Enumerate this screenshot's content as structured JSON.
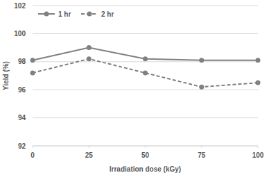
{
  "chart_data": {
    "type": "line",
    "x_label": "Irradiation dose (kGy)",
    "y_label": "Yield (%)",
    "x": [
      0,
      25,
      50,
      75,
      100
    ],
    "series": [
      {
        "name": "1 hr",
        "color": "#808080",
        "marker": "circle",
        "line_style": "solid",
        "values": [
          98.1,
          99.0,
          98.2,
          98.1,
          98.1
        ]
      },
      {
        "name": "2 hr",
        "color": "#808080",
        "marker": "circle",
        "line_style": "dashed",
        "values": [
          97.2,
          98.2,
          97.2,
          96.2,
          96.5
        ]
      }
    ],
    "xlim": [
      0,
      100
    ],
    "xticks": [
      0,
      25,
      50,
      75,
      100
    ],
    "ylim": [
      92,
      102
    ],
    "yticks": [
      92,
      94,
      96,
      98,
      100,
      102
    ],
    "grid": true,
    "legend": "top-left"
  }
}
